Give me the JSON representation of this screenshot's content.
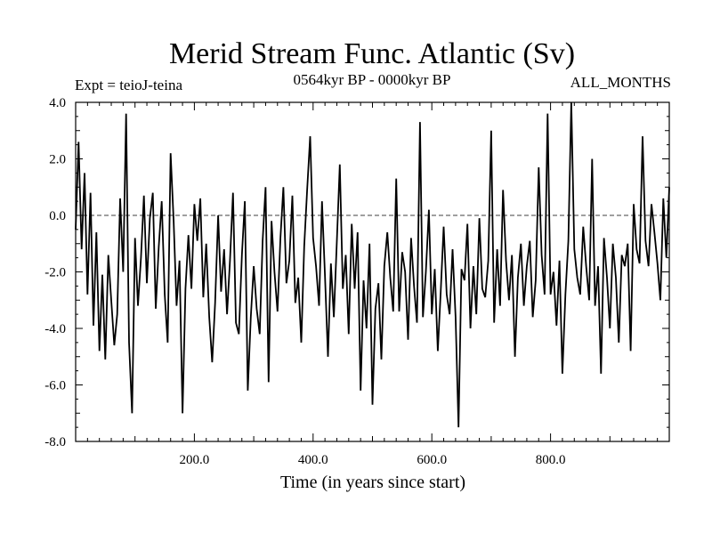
{
  "chart_data": {
    "type": "line",
    "title": "Merid Stream Func. Atlantic (Sv)",
    "subtitle_left": "Expt = teioJ-teina",
    "subtitle_center": "0564kyr BP - 0000kyr BP",
    "subtitle_right": "ALL_MONTHS",
    "xlabel": "Time (in years since start)",
    "ylabel": "",
    "xlim": [
      0,
      1000
    ],
    "ylim": [
      -8.0,
      4.0
    ],
    "xticks": [
      200,
      400,
      600,
      800
    ],
    "xtick_labels": [
      "200.0",
      "400.0",
      "600.0",
      "800.0"
    ],
    "yticks": [
      4.0,
      2.0,
      0.0,
      -2.0,
      -4.0,
      -6.0,
      -8.0
    ],
    "ytick_labels": [
      "4.0",
      "2.0",
      "0.0",
      "-2.0",
      "-4.0",
      "-6.0",
      "-8.0"
    ],
    "reference_line": {
      "y": 0.0,
      "style": "dashed"
    },
    "grid": false,
    "line_color": "#000000",
    "series": [
      {
        "x": [
          0,
          5,
          10,
          15,
          20,
          25,
          30,
          35,
          40,
          45,
          50,
          55,
          60,
          65,
          70,
          75,
          80,
          85,
          90,
          95,
          100,
          105,
          110,
          115,
          120,
          125,
          130,
          135,
          140,
          145,
          150,
          155,
          160,
          165,
          170,
          175,
          180,
          185,
          190,
          195,
          200,
          205,
          210,
          215,
          220,
          225,
          230,
          235,
          240,
          245,
          250,
          255,
          260,
          265,
          270,
          275,
          280,
          285,
          290,
          295,
          300,
          305,
          310,
          315,
          320,
          325,
          330,
          335,
          340,
          345,
          350,
          355,
          360,
          365,
          370,
          375,
          380,
          385,
          390,
          395,
          400,
          405,
          410,
          415,
          420,
          425,
          430,
          435,
          440,
          445,
          450,
          455,
          460,
          465,
          470,
          475,
          480,
          485,
          490,
          495,
          500,
          505,
          510,
          515,
          520,
          525,
          530,
          535,
          540,
          545,
          550,
          555,
          560,
          565,
          570,
          575,
          580,
          585,
          590,
          595,
          600,
          605,
          610,
          615,
          620,
          625,
          630,
          635,
          640,
          645,
          650,
          655,
          660,
          665,
          670,
          675,
          680,
          685,
          690,
          695,
          700,
          705,
          710,
          715,
          720,
          725,
          730,
          735,
          740,
          745,
          750,
          755,
          760,
          765,
          770,
          775,
          780,
          785,
          790,
          795,
          800,
          805,
          810,
          815,
          820,
          825,
          830,
          835,
          840,
          845,
          850,
          855,
          860,
          865,
          870,
          875,
          880,
          885,
          890,
          895,
          900,
          905,
          910,
          915,
          920,
          925,
          930,
          935,
          940,
          945,
          950,
          955,
          960,
          965,
          970,
          975,
          980,
          985,
          990,
          995,
          1000
        ],
        "values": [
          -0.5,
          2.6,
          -1.2,
          1.5,
          -2.8,
          0.8,
          -3.9,
          -0.6,
          -4.8,
          -2.1,
          -5.1,
          -1.4,
          -3.0,
          -4.6,
          -3.5,
          0.6,
          -2.0,
          3.6,
          -4.5,
          -7.0,
          -0.8,
          -3.2,
          -1.5,
          0.7,
          -2.4,
          -0.1,
          0.8,
          -3.3,
          -1.1,
          0.5,
          -2.8,
          -4.5,
          2.2,
          -0.2,
          -3.2,
          -1.6,
          -7.0,
          -2.6,
          -0.7,
          -2.6,
          0.4,
          -0.9,
          0.6,
          -2.9,
          -1.0,
          -3.6,
          -5.2,
          -3.1,
          0.0,
          -2.7,
          -1.2,
          -3.5,
          -1.6,
          0.8,
          -3.8,
          -4.2,
          -1.4,
          0.5,
          -6.2,
          -3.6,
          -1.8,
          -3.3,
          -4.2,
          -0.9,
          1.0,
          -5.9,
          -0.2,
          -2.0,
          -3.4,
          -0.8,
          1.0,
          -2.4,
          -1.6,
          0.7,
          -3.1,
          -2.2,
          -4.5,
          -1.1,
          0.9,
          2.8,
          -0.8,
          -1.8,
          -3.2,
          0.5,
          -2.1,
          -5.0,
          -1.7,
          -3.6,
          -0.9,
          1.8,
          -2.6,
          -1.4,
          -4.2,
          -0.3,
          -2.6,
          -0.6,
          -6.2,
          -2.3,
          -4.0,
          -1.0,
          -6.7,
          -3.3,
          -2.4,
          -5.1,
          -1.8,
          -0.6,
          -2.2,
          -3.4,
          1.3,
          -3.4,
          -1.3,
          -2.0,
          -4.4,
          -0.8,
          -2.5,
          -3.8,
          3.3,
          -3.6,
          -2.0,
          0.2,
          -3.5,
          -1.9,
          -4.8,
          -2.7,
          -0.4,
          -2.8,
          -3.5,
          -1.2,
          -3.6,
          -7.5,
          -1.9,
          -2.3,
          -0.3,
          -4.0,
          -1.8,
          -3.5,
          -0.1,
          -2.6,
          -2.9,
          -1.6,
          3.0,
          -3.8,
          -1.2,
          -3.2,
          0.9,
          -1.6,
          -3.0,
          -1.4,
          -5.0,
          -2.2,
          -1.0,
          -3.2,
          -1.8,
          -0.9,
          -3.6,
          -2.3,
          1.7,
          -1.4,
          -2.8,
          3.6,
          -2.8,
          -2.0,
          -3.9,
          -1.6,
          -5.6,
          -2.8,
          -0.9,
          4.0,
          -1.2,
          -2.2,
          -2.8,
          -0.4,
          -1.8,
          -3.0,
          2.0,
          -3.2,
          -1.8,
          -5.6,
          -0.8,
          -2.2,
          -4.0,
          -1.0,
          -2.2,
          -4.5,
          -1.4,
          -1.8,
          -1.0,
          -4.8,
          0.4,
          -1.2,
          -1.7,
          2.8,
          -0.9,
          -1.8,
          0.4,
          -0.6,
          -1.7,
          -3.0,
          0.6,
          -1.5,
          1.0
        ]
      }
    ]
  }
}
